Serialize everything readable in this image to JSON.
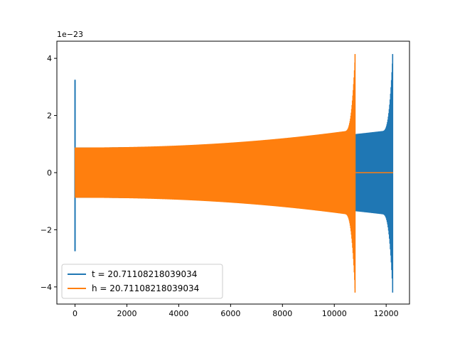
{
  "chart_data": {
    "type": "line",
    "title": "",
    "xlabel": "",
    "ylabel": "",
    "y_offset_text": "1e−23",
    "xlim": [
      -700,
      12900
    ],
    "ylim": [
      -4.6,
      4.6
    ],
    "x_ticks": [
      0,
      2000,
      4000,
      6000,
      8000,
      10000,
      12000
    ],
    "x_tick_labels": [
      "0",
      "2000",
      "4000",
      "6000",
      "8000",
      "10000",
      "12000"
    ],
    "y_ticks": [
      -4,
      -2,
      0,
      2,
      4
    ],
    "y_tick_labels": [
      "−4",
      "−2",
      "0",
      "2",
      "4"
    ],
    "grid": false,
    "legend_position": "lower-left",
    "series": [
      {
        "name": "t = 20.71108218039034",
        "color": "#1f77b4",
        "description_points": {
          "start_spike_x": 0,
          "start_spike_max": 3.25,
          "start_spike_min": -2.75,
          "body_start_x": 50,
          "body_end_x": 12250,
          "body_amp_start": 0.88,
          "body_amp_before_merger": 1.5,
          "peak_x": 12250,
          "peak_max": 4.15,
          "peak_min": -4.2,
          "end_x": 12270
        }
      },
      {
        "name": "h = 20.71108218039034",
        "color": "#ff7f0e",
        "description_points": {
          "start_x": 0,
          "body_amp_start": 0.88,
          "body_amp_before_merger": 1.5,
          "peak_x": 10800,
          "peak_max": 4.15,
          "peak_min": -4.2,
          "zero_line_start_x": 10820,
          "zero_line_end_x": 12270
        }
      }
    ]
  }
}
